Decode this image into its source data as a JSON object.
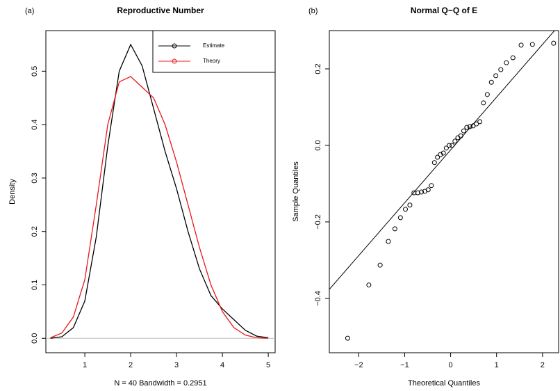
{
  "chart_data": [
    {
      "type": "line",
      "panel_label": "(a)",
      "title": "Reproductive Number",
      "x_label": "N = 40   Bandwidth = 0.2951",
      "y_label": "Density",
      "x": [
        0.25,
        0.5,
        0.75,
        1.0,
        1.25,
        1.5,
        1.75,
        2.0,
        2.25,
        2.5,
        2.75,
        3.0,
        3.25,
        3.5,
        3.75,
        4.0,
        4.25,
        4.5,
        4.75,
        5.0
      ],
      "series": [
        {
          "name": "Estimate",
          "color": "#000000",
          "values": [
            0.0,
            0.003,
            0.02,
            0.07,
            0.19,
            0.36,
            0.5,
            0.55,
            0.51,
            0.43,
            0.35,
            0.28,
            0.2,
            0.13,
            0.08,
            0.055,
            0.035,
            0.015,
            0.004,
            0.001
          ]
        },
        {
          "name": "Theory",
          "color": "#e8171a",
          "values": [
            0.001,
            0.01,
            0.04,
            0.11,
            0.25,
            0.4,
            0.48,
            0.49,
            0.47,
            0.45,
            0.4,
            0.33,
            0.25,
            0.17,
            0.1,
            0.05,
            0.02,
            0.006,
            0.001,
            0.0
          ]
        }
      ],
      "xlim": [
        0.15,
        5.15
      ],
      "ylim": [
        -0.027,
        0.576
      ],
      "xticks": [
        1,
        2,
        3,
        4,
        5
      ],
      "yticks": [
        {
          "value": 0,
          "label": "0.0"
        },
        0.1,
        0.2,
        0.3,
        0.4,
        0.5
      ],
      "baseline_color": "#bebebe",
      "legend": "top-right"
    },
    {
      "type": "scatter",
      "panel_label": "(b)",
      "title": "Normal Q−Q of E",
      "x_label": "Theoretical Quantiles",
      "y_label": "Sample Quantiles",
      "x": [
        -2.241,
        -1.78,
        -1.534,
        -1.356,
        -1.213,
        -1.092,
        -0.984,
        -0.887,
        -0.798,
        -0.714,
        -0.636,
        -0.561,
        -0.489,
        -0.419,
        -0.352,
        -0.286,
        -0.221,
        -0.157,
        -0.094,
        -0.031,
        0.031,
        0.094,
        0.157,
        0.221,
        0.286,
        0.352,
        0.419,
        0.489,
        0.561,
        0.636,
        0.714,
        0.798,
        0.887,
        0.984,
        1.092,
        1.213,
        1.356,
        1.534,
        1.78,
        2.241
      ],
      "values": [
        -0.504,
        -0.365,
        -0.313,
        -0.251,
        -0.218,
        -0.189,
        -0.167,
        -0.156,
        -0.124,
        -0.124,
        -0.122,
        -0.12,
        -0.116,
        -0.105,
        -0.045,
        -0.031,
        -0.024,
        -0.02,
        -0.007,
        0.0,
        0.0,
        0.011,
        0.02,
        0.025,
        0.038,
        0.047,
        0.049,
        0.051,
        0.056,
        0.062,
        0.111,
        0.133,
        0.165,
        0.182,
        0.198,
        0.216,
        0.229,
        0.262,
        0.264,
        0.267
      ],
      "color": "#000000",
      "qqline": {
        "intercept": -0.012,
        "slope": 0.138
      },
      "xlim": [
        -2.64,
        2.35
      ],
      "ylim": [
        -0.542,
        0.3
      ],
      "xticks": [
        {
          "value": -2,
          "label": "−2"
        },
        {
          "value": -1,
          "label": "−1"
        },
        0,
        1,
        2
      ],
      "yticks": [
        {
          "value": -0.4,
          "label": "−0.4"
        },
        {
          "value": -0.2,
          "label": "−0.2"
        },
        {
          "value": 0,
          "label": "0.0"
        },
        0.2
      ]
    }
  ]
}
